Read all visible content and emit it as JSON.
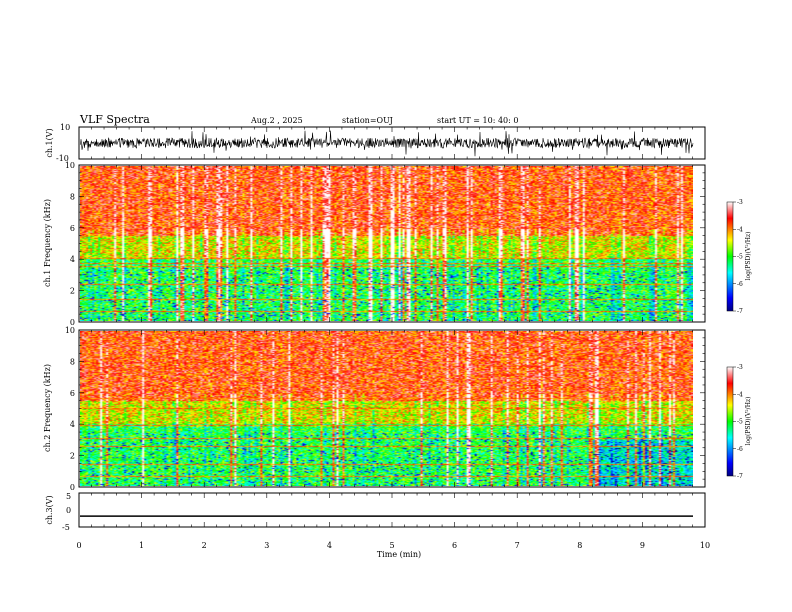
{
  "header": {
    "title": "VLF Spectra",
    "date": "Aug.2  , 2025",
    "station": "station=OUJ",
    "start_ut": "start  UT =   10: 40: 0"
  },
  "chart_data": [
    {
      "type": "line",
      "panel": "ch1-waveform",
      "ylabel": "ch.1(V)",
      "ylim": [
        -10,
        10
      ],
      "yticks": [
        "10",
        "-10"
      ],
      "xlim": [
        0,
        10
      ],
      "trace": "dense noisy waveform centered near 0 V with spikes from 0 to 9.8 min"
    },
    {
      "type": "heatmap",
      "panel": "ch1-spectrogram",
      "ylabel": "ch.1 Frequency (kHz)",
      "ylim": [
        0,
        10
      ],
      "yticks": [
        "0",
        "2",
        "4",
        "6",
        "8",
        "10"
      ],
      "xlim": [
        0,
        9.8
      ],
      "colorbar": {
        "label": "log(PSD)(V²/Hz)",
        "range": [
          -7,
          -3
        ],
        "ticks": [
          "-3",
          "-4",
          "-5",
          "-6",
          "-7"
        ]
      }
    },
    {
      "type": "heatmap",
      "panel": "ch2-spectrogram",
      "ylabel": "ch.2 Frequency (kHz)",
      "ylim": [
        0,
        10
      ],
      "yticks": [
        "0",
        "2",
        "4",
        "6",
        "8",
        "10"
      ],
      "xlim": [
        0,
        9.8
      ],
      "colorbar": {
        "label": "log(PSD)(V²/Hz)",
        "range": [
          -7,
          -3
        ],
        "ticks": [
          "-3",
          "-4",
          "-5",
          "-6",
          "-7"
        ]
      }
    },
    {
      "type": "line",
      "panel": "ch3-waveform",
      "ylabel": "ch.3(V)",
      "ylim": [
        -5,
        5
      ],
      "yticks": [
        "5",
        "0",
        "-5"
      ],
      "x": [
        0,
        9.8
      ],
      "y": [
        -1.8,
        -1.8
      ]
    }
  ],
  "xaxis": {
    "label": "Time  (min)",
    "ticks": [
      "0",
      "1",
      "2",
      "3",
      "4",
      "5",
      "6",
      "7",
      "8",
      "9",
      "10"
    ]
  },
  "colors": {
    "jet": [
      "#000080",
      "#0000ff",
      "#00ffff",
      "#00ff00",
      "#ffff00",
      "#ff0000",
      "#ffffff"
    ]
  }
}
